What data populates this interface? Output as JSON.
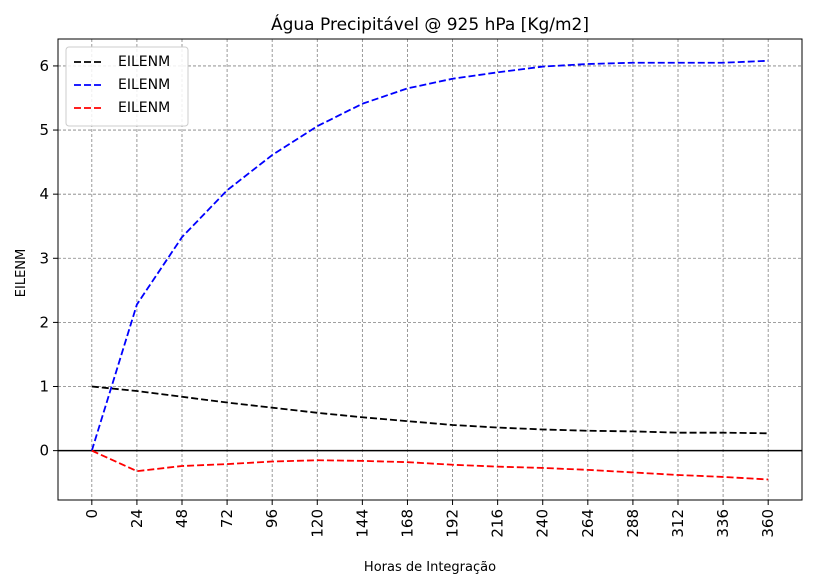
{
  "chart_data": {
    "type": "line",
    "title": "Água Precipitável @ 925 hPa [Kg/m2]",
    "xlabel": "Horas de Integração",
    "ylabel": "EILENM",
    "x": [
      0,
      24,
      48,
      72,
      96,
      120,
      144,
      168,
      192,
      216,
      240,
      264,
      288,
      312,
      336,
      360
    ],
    "x_tick_labels": [
      "0",
      "24",
      "48",
      "72",
      "96",
      "120",
      "144",
      "168",
      "192",
      "216",
      "240",
      "264",
      "288",
      "312",
      "336",
      "360"
    ],
    "y_tick_labels": [
      "0",
      "1",
      "2",
      "3",
      "4",
      "5",
      "6"
    ],
    "y_ticks": [
      0,
      1,
      2,
      3,
      4,
      5,
      6
    ],
    "xlim": [
      -18,
      360
    ],
    "ylim": [
      -0.77,
      6.42
    ],
    "grid": true,
    "zero_line": true,
    "legend_location": "upper-left",
    "series": [
      {
        "name": "EILENM",
        "color": "#000000",
        "style": "dashed",
        "values": [
          1.0,
          0.93,
          0.84,
          0.75,
          0.67,
          0.59,
          0.52,
          0.46,
          0.4,
          0.36,
          0.33,
          0.31,
          0.3,
          0.28,
          0.28,
          0.27
        ]
      },
      {
        "name": "EILENM",
        "color": "#0000ff",
        "style": "dashed",
        "values": [
          0.0,
          2.28,
          3.33,
          4.06,
          4.61,
          5.06,
          5.41,
          5.65,
          5.8,
          5.9,
          5.99,
          6.03,
          6.05,
          6.05,
          6.05,
          6.08
        ]
      },
      {
        "name": "EILENM",
        "color": "#ff0000",
        "style": "dashed",
        "values": [
          0.0,
          -0.32,
          -0.24,
          -0.21,
          -0.17,
          -0.15,
          -0.16,
          -0.18,
          -0.22,
          -0.25,
          -0.27,
          -0.3,
          -0.34,
          -0.38,
          -0.41,
          -0.45
        ]
      }
    ]
  }
}
